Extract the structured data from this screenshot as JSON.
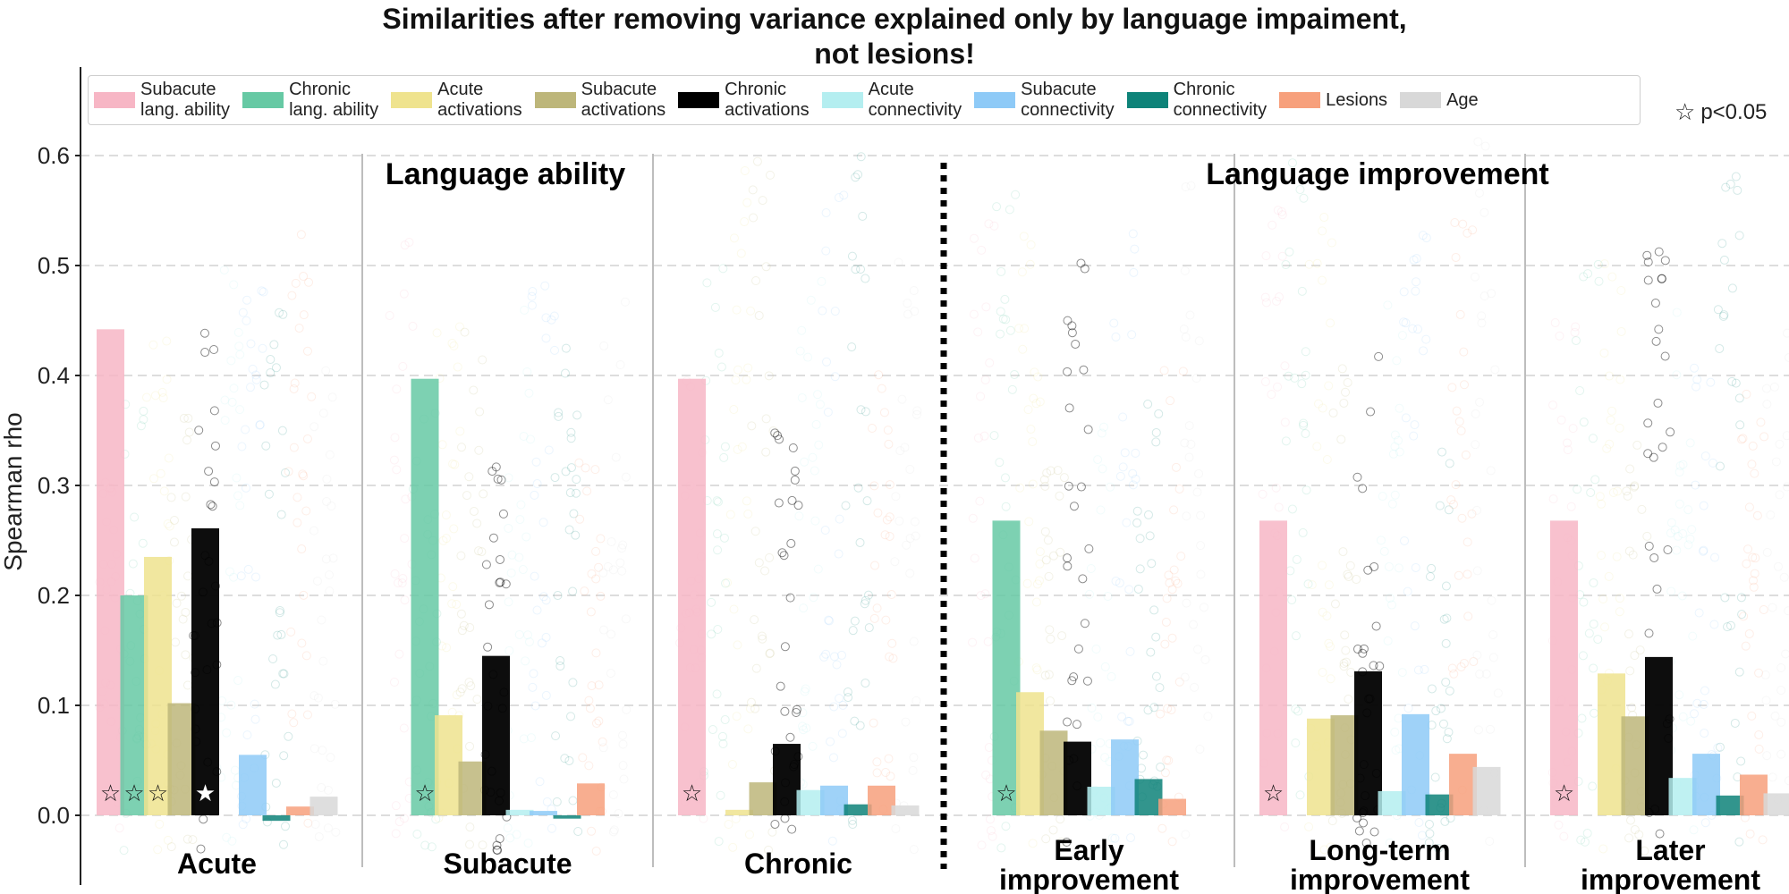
{
  "title_lines": [
    "Similarities after removing variance explained only by language impaiment,",
    "not lesions!"
  ],
  "ylabel": "Spearman rho",
  "p_note": "p<0.05",
  "star_glyph": "☆",
  "chart_data": {
    "type": "bar",
    "title": "Similarities after removing variance explained only by language impaiment, not lesions!",
    "ylabel": "Spearman rho",
    "ylim": [
      -0.06,
      0.68
    ],
    "yticks": [
      0.0,
      0.1,
      0.2,
      0.3,
      0.4,
      0.5,
      0.6
    ],
    "grid": "horizontal dashed",
    "legend": "top",
    "section_labels": [
      "Language ability",
      "Language improvement"
    ],
    "series": [
      {
        "name": "Subacute\nlang. ability",
        "color": "#f7b6c5"
      },
      {
        "name": "Chronic\nlang. ability",
        "color": "#66c9a4"
      },
      {
        "name": "Acute\nactivations",
        "color": "#efe38e"
      },
      {
        "name": "Subacute\nactivations",
        "color": "#bdb67a"
      },
      {
        "name": "Chronic\nactivations",
        "color": "#000000"
      },
      {
        "name": "Acute\nconnectivity",
        "color": "#b4eef0"
      },
      {
        "name": "Subacute\nconnectivity",
        "color": "#8ecaf7"
      },
      {
        "name": "Chronic\nconnectivity",
        "color": "#0e8379"
      },
      {
        "name": "Lesions",
        "color": "#f7a07c"
      },
      {
        "name": "Age",
        "color": "#d8d8d8"
      }
    ],
    "groups": [
      {
        "label": "Acute",
        "values": [
          0.442,
          0.2,
          0.235,
          0.102,
          0.261,
          null,
          0.055,
          -0.005,
          0.008,
          0.017
        ],
        "stars": [
          0,
          1,
          2,
          4
        ]
      },
      {
        "label": "Subacute",
        "values": [
          null,
          0.397,
          0.091,
          0.049,
          0.145,
          0.005,
          0.004,
          -0.003,
          0.029,
          null
        ],
        "stars": [
          1
        ]
      },
      {
        "label": "Chronic",
        "values": [
          0.397,
          null,
          0.005,
          0.03,
          0.065,
          0.023,
          0.027,
          0.01,
          0.027,
          0.009
        ],
        "stars": [
          0
        ]
      },
      {
        "label": "Early\nimprovement",
        "values": [
          null,
          0.268,
          0.112,
          0.077,
          0.067,
          0.026,
          0.069,
          0.033,
          0.015,
          null
        ],
        "stars": [
          1
        ]
      },
      {
        "label": "Long-term\nimprovement",
        "values": [
          0.268,
          null,
          0.088,
          0.091,
          0.131,
          0.022,
          0.092,
          0.019,
          0.056,
          0.044
        ],
        "stars": [
          0
        ]
      },
      {
        "label": "Later\nimprovement",
        "values": [
          0.268,
          null,
          0.129,
          0.09,
          0.144,
          0.034,
          0.056,
          0.018,
          0.037,
          0.02
        ],
        "stars": [
          0
        ]
      }
    ]
  }
}
